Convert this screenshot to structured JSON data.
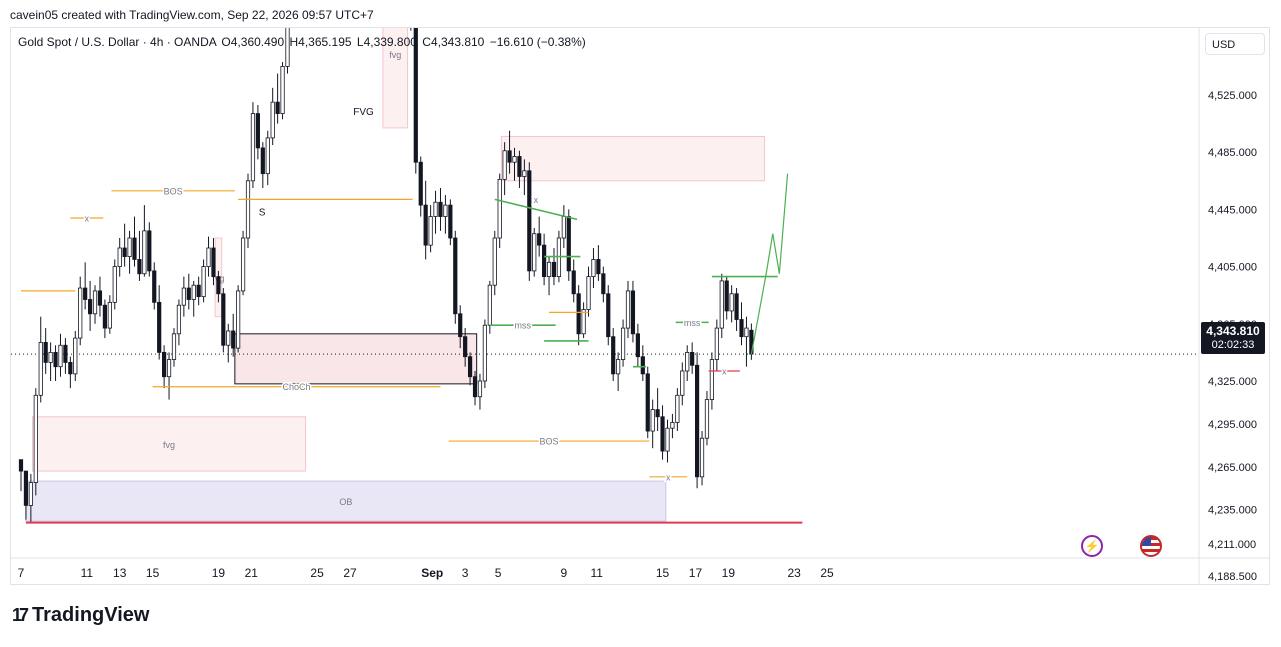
{
  "header": {
    "watermark": "cavein05 created with TradingView.com, Sep 22, 2026 09:57 UTC+7"
  },
  "legend": {
    "symbol": "Gold Spot / U.S. Dollar · 4h · OANDA",
    "open": "O4,360.490",
    "high": "H4,365.195",
    "low": "L4,339.800",
    "close": "C4,343.810",
    "change": "−16.610 (−0.38%)"
  },
  "price_axis": {
    "currency": "USD"
  },
  "last_price": {
    "price": "4,343.810",
    "countdown": "02:02:33"
  },
  "brand": {
    "name": "TradingView",
    "mark": "17"
  },
  "icons": {
    "alert": "lightning-icon",
    "flag": "us-flag-icon"
  },
  "colors": {
    "up": "#ffffff",
    "down": "#131722",
    "wick": "#131722",
    "orange": "#f5a623",
    "green": "#4caf50",
    "red": "#e53950",
    "zone_pink": "#fbe6e8",
    "zone_purple": "#e6e4f5"
  },
  "chart_data": {
    "type": "candlestick",
    "symbol": "XAUUSD",
    "timeframe": "4h",
    "y_ticks": [
      4525,
      4485,
      4445,
      4405,
      4365,
      4325,
      4295,
      4265,
      4235,
      4211,
      4188.5
    ],
    "y_tick_labels": [
      "4,525.000",
      "4,485.000",
      "4,445.000",
      "4,405.000",
      "4,365.000",
      "4,325.000",
      "4,295.000",
      "4,265.000",
      "4,235.000",
      "4,211.000",
      "4,188.500"
    ],
    "x_ticks": [
      "7",
      "11",
      "13",
      "15",
      "19",
      "21",
      "25",
      "27",
      "Sep",
      "3",
      "5",
      "9",
      "11",
      "15",
      "17",
      "19",
      "23",
      "25"
    ],
    "x_tick_day_index": [
      0,
      4,
      6,
      8,
      12,
      14,
      18,
      20,
      25,
      27,
      29,
      33,
      35,
      39,
      41,
      43,
      47,
      49
    ],
    "last_price": 4343.81,
    "candles": [
      [
        0,
        4270,
        4270,
        4248,
        4262
      ],
      [
        0.3,
        4262,
        4262,
        4228,
        4238
      ],
      [
        0.6,
        4238,
        4260,
        4226,
        4254
      ],
      [
        0.9,
        4254,
        4320,
        4245,
        4315
      ],
      [
        1.2,
        4315,
        4370,
        4310,
        4352
      ],
      [
        1.5,
        4352,
        4362,
        4330,
        4338
      ],
      [
        1.8,
        4338,
        4352,
        4325,
        4345
      ],
      [
        2.1,
        4345,
        4350,
        4325,
        4335
      ],
      [
        2.4,
        4335,
        4358,
        4328,
        4350
      ],
      [
        2.7,
        4350,
        4355,
        4330,
        4338
      ],
      [
        3.0,
        4338,
        4342,
        4320,
        4330
      ],
      [
        3.3,
        4330,
        4360,
        4325,
        4355
      ],
      [
        3.6,
        4355,
        4398,
        4350,
        4390
      ],
      [
        3.9,
        4390,
        4408,
        4375,
        4382
      ],
      [
        4.2,
        4382,
        4395,
        4360,
        4372
      ],
      [
        4.5,
        4372,
        4392,
        4365,
        4388
      ],
      [
        4.8,
        4388,
        4398,
        4370,
        4378
      ],
      [
        5.1,
        4378,
        4382,
        4355,
        4362
      ],
      [
        5.4,
        4362,
        4385,
        4358,
        4380
      ],
      [
        5.7,
        4380,
        4410,
        4375,
        4405
      ],
      [
        6.0,
        4405,
        4425,
        4398,
        4418
      ],
      [
        6.3,
        4418,
        4435,
        4405,
        4412
      ],
      [
        6.6,
        4412,
        4430,
        4400,
        4425
      ],
      [
        6.9,
        4425,
        4440,
        4405,
        4410
      ],
      [
        7.2,
        4410,
        4430,
        4395,
        4400
      ],
      [
        7.5,
        4400,
        4448,
        4398,
        4430
      ],
      [
        7.8,
        4430,
        4436,
        4398,
        4402
      ],
      [
        8.1,
        4402,
        4408,
        4375,
        4380
      ],
      [
        8.4,
        4380,
        4392,
        4340,
        4345
      ],
      [
        8.7,
        4345,
        4350,
        4320,
        4328
      ],
      [
        9.0,
        4328,
        4345,
        4312,
        4340
      ],
      [
        9.3,
        4340,
        4362,
        4335,
        4358
      ],
      [
        9.6,
        4358,
        4382,
        4350,
        4378
      ],
      [
        9.9,
        4378,
        4398,
        4370,
        4390
      ],
      [
        10.2,
        4390,
        4400,
        4375,
        4382
      ],
      [
        10.5,
        4382,
        4395,
        4370,
        4392
      ],
      [
        10.8,
        4392,
        4398,
        4378,
        4384
      ],
      [
        11.1,
        4384,
        4410,
        4380,
        4405
      ],
      [
        11.4,
        4405,
        4426,
        4398,
        4418
      ],
      [
        11.7,
        4418,
        4425,
        4392,
        4398
      ],
      [
        12.0,
        4398,
        4402,
        4380,
        4386
      ],
      [
        12.3,
        4386,
        4390,
        4345,
        4350
      ],
      [
        12.6,
        4350,
        4365,
        4338,
        4360
      ],
      [
        12.9,
        4360,
        4372,
        4342,
        4348
      ],
      [
        13.2,
        4348,
        4392,
        4345,
        4388
      ],
      [
        13.5,
        4388,
        4430,
        4385,
        4425
      ],
      [
        13.8,
        4425,
        4470,
        4418,
        4465
      ],
      [
        14.1,
        4465,
        4520,
        4460,
        4512
      ],
      [
        14.4,
        4512,
        4518,
        4480,
        4488
      ],
      [
        14.7,
        4488,
        4492,
        4460,
        4470
      ],
      [
        15.0,
        4470,
        4500,
        4462,
        4495
      ],
      [
        15.3,
        4495,
        4530,
        4490,
        4520
      ],
      [
        15.6,
        4520,
        4540,
        4505,
        4512
      ],
      [
        15.9,
        4512,
        4548,
        4508,
        4545
      ],
      [
        16.2,
        4545,
        4600,
        4540,
        4595
      ],
      [
        16.5,
        4595,
        4620,
        4580,
        4610
      ],
      [
        16.8,
        4610,
        4625,
        4598,
        4605
      ],
      [
        23.4,
        4605,
        4612,
        4590,
        4598
      ],
      [
        23.7,
        4598,
        4610,
        4570,
        4580
      ],
      [
        24.0,
        4580,
        4590,
        4470,
        4478
      ],
      [
        24.3,
        4478,
        4482,
        4440,
        4448
      ],
      [
        24.6,
        4448,
        4465,
        4410,
        4420
      ],
      [
        24.9,
        4420,
        4448,
        4415,
        4440
      ],
      [
        25.2,
        4440,
        4458,
        4428,
        4450
      ],
      [
        25.5,
        4450,
        4460,
        4430,
        4440
      ],
      [
        25.8,
        4440,
        4455,
        4428,
        4448
      ],
      [
        26.1,
        4448,
        4452,
        4420,
        4425
      ],
      [
        26.4,
        4425,
        4430,
        4365,
        4372
      ],
      [
        26.7,
        4372,
        4378,
        4348,
        4356
      ],
      [
        27.0,
        4356,
        4362,
        4335,
        4342
      ],
      [
        27.3,
        4342,
        4345,
        4322,
        4328
      ],
      [
        27.6,
        4328,
        4332,
        4308,
        4314
      ],
      [
        27.9,
        4314,
        4330,
        4305,
        4325
      ],
      [
        28.2,
        4325,
        4368,
        4320,
        4364
      ],
      [
        28.5,
        4364,
        4395,
        4358,
        4392
      ],
      [
        28.8,
        4392,
        4430,
        4385,
        4425
      ],
      [
        29.1,
        4425,
        4470,
        4418,
        4466
      ],
      [
        29.4,
        4466,
        4492,
        4455,
        4486
      ],
      [
        29.7,
        4486,
        4500,
        4470,
        4478
      ],
      [
        30.0,
        4478,
        4488,
        4465,
        4482
      ],
      [
        30.3,
        4482,
        4486,
        4460,
        4468
      ],
      [
        30.6,
        4468,
        4480,
        4455,
        4472
      ],
      [
        30.9,
        4472,
        4478,
        4395,
        4402
      ],
      [
        31.2,
        4402,
        4432,
        4398,
        4428
      ],
      [
        31.5,
        4428,
        4440,
        4412,
        4420
      ],
      [
        31.8,
        4420,
        4428,
        4392,
        4398
      ],
      [
        32.1,
        4398,
        4412,
        4385,
        4408
      ],
      [
        32.4,
        4408,
        4418,
        4392,
        4398
      ],
      [
        32.7,
        4398,
        4430,
        4394,
        4425
      ],
      [
        33.0,
        4425,
        4448,
        4418,
        4440
      ],
      [
        33.3,
        4440,
        4445,
        4395,
        4402
      ],
      [
        33.6,
        4402,
        4410,
        4380,
        4386
      ],
      [
        33.9,
        4386,
        4392,
        4350,
        4358
      ],
      [
        34.2,
        4358,
        4380,
        4355,
        4375
      ],
      [
        34.5,
        4375,
        4405,
        4370,
        4398
      ],
      [
        34.8,
        4398,
        4418,
        4390,
        4410
      ],
      [
        35.1,
        4410,
        4420,
        4395,
        4400
      ],
      [
        35.4,
        4400,
        4405,
        4380,
        4386
      ],
      [
        35.7,
        4386,
        4392,
        4350,
        4356
      ],
      [
        36.0,
        4356,
        4362,
        4325,
        4330
      ],
      [
        36.3,
        4330,
        4345,
        4318,
        4340
      ],
      [
        36.6,
        4340,
        4368,
        4335,
        4362
      ],
      [
        36.9,
        4362,
        4395,
        4355,
        4388
      ],
      [
        37.2,
        4388,
        4395,
        4352,
        4358
      ],
      [
        37.5,
        4358,
        4365,
        4335,
        4342
      ],
      [
        37.8,
        4342,
        4350,
        4325,
        4330
      ],
      [
        38.1,
        4330,
        4335,
        4285,
        4290
      ],
      [
        38.4,
        4290,
        4312,
        4278,
        4305
      ],
      [
        38.7,
        4305,
        4320,
        4290,
        4300
      ],
      [
        39.0,
        4300,
        4308,
        4270,
        4276
      ],
      [
        39.3,
        4276,
        4298,
        4268,
        4292
      ],
      [
        39.6,
        4292,
        4302,
        4285,
        4296
      ],
      [
        39.9,
        4296,
        4320,
        4290,
        4315
      ],
      [
        40.2,
        4315,
        4338,
        4308,
        4332
      ],
      [
        40.5,
        4332,
        4350,
        4325,
        4345
      ],
      [
        40.8,
        4345,
        4352,
        4330,
        4336
      ],
      [
        41.1,
        4336,
        4345,
        4250,
        4258
      ],
      [
        41.4,
        4258,
        4290,
        4252,
        4285
      ],
      [
        41.7,
        4285,
        4318,
        4280,
        4312
      ],
      [
        42.0,
        4312,
        4345,
        4305,
        4340
      ],
      [
        42.3,
        4340,
        4368,
        4332,
        4362
      ],
      [
        42.6,
        4362,
        4400,
        4355,
        4395
      ],
      [
        42.9,
        4395,
        4398,
        4368,
        4374
      ],
      [
        43.2,
        4374,
        4392,
        4366,
        4386
      ],
      [
        43.5,
        4386,
        4390,
        4360,
        4368
      ],
      [
        43.8,
        4368,
        4380,
        4350,
        4356
      ],
      [
        44.1,
        4356,
        4370,
        4335,
        4362
      ],
      [
        44.4,
        4360.49,
        4365.195,
        4339.8,
        4343.81
      ]
    ],
    "annotations": [
      {
        "type": "zone",
        "label": "fvg",
        "x1": 0.7,
        "x2": 17.3,
        "y1": 4300,
        "y2": 4262,
        "color": "pink"
      },
      {
        "type": "zone",
        "label": "OB",
        "x1": 0.3,
        "x2": 39.2,
        "y1": 4255,
        "y2": 4227,
        "color": "purple"
      },
      {
        "type": "zone",
        "label": "",
        "x1": 13.0,
        "x2": 27.7,
        "y1": 4358,
        "y2": 4323,
        "color": "pink_dark"
      },
      {
        "type": "zone",
        "label": "fvg",
        "x1": 11.8,
        "x2": 12.2,
        "y1": 4425,
        "y2": 4370,
        "color": "pink"
      },
      {
        "type": "zone",
        "label": "fvg",
        "x1": 22.0,
        "x2": 23.5,
        "y1": 4605,
        "y2": 4502,
        "color": "pink"
      },
      {
        "type": "zone",
        "label": "",
        "x1": 29.2,
        "x2": 45.2,
        "y1": 4496,
        "y2": 4465,
        "color": "pink"
      },
      {
        "type": "hline",
        "label": "BOS",
        "x1": 5.5,
        "x2": 13.0,
        "y": 4458,
        "color": "orange"
      },
      {
        "type": "hline",
        "label": "x",
        "x1": 3.0,
        "x2": 5.0,
        "y": 4439,
        "color": "orange"
      },
      {
        "type": "hline",
        "label": "ChoCh",
        "x1": 8.0,
        "x2": 25.5,
        "y": 4321,
        "color": "orange"
      },
      {
        "type": "hline",
        "label": "BOS",
        "x1": 26.0,
        "x2": 38.2,
        "y": 4283,
        "color": "orange"
      },
      {
        "type": "hline",
        "label": "S",
        "x1": 13.2,
        "x2": 23.8,
        "y": 4452,
        "color": "orange"
      },
      {
        "type": "hline",
        "label": "",
        "x1": 0,
        "x2": 3.3,
        "y": 4388,
        "color": "orange"
      },
      {
        "type": "hline",
        "label": "",
        "x1": 32.1,
        "x2": 34.5,
        "y": 4373,
        "color": "orange"
      },
      {
        "type": "hline",
        "label": "x",
        "x1": 38.2,
        "x2": 40.5,
        "y": 4258,
        "color": "orange"
      },
      {
        "type": "hline",
        "label": "mss",
        "x1": 28.5,
        "x2": 32.5,
        "y": 4364,
        "color": "green"
      },
      {
        "type": "hline",
        "label": "",
        "x1": 31.8,
        "x2": 34.0,
        "y": 4412,
        "color": "green"
      },
      {
        "type": "hline",
        "label": "",
        "x1": 31.8,
        "x2": 34.5,
        "y": 4353,
        "color": "green"
      },
      {
        "type": "hline",
        "label": "",
        "x1": 37.2,
        "x2": 38.0,
        "y": 4335,
        "color": "green"
      },
      {
        "type": "hline",
        "label": "",
        "x1": 42.0,
        "x2": 46.0,
        "y": 4398,
        "color": "green"
      },
      {
        "type": "hline",
        "label": "mss",
        "x1": 39.8,
        "x2": 41.8,
        "y": 4366,
        "color": "green"
      },
      {
        "type": "hline",
        "label": "x",
        "x1": 41.8,
        "x2": 43.7,
        "y": 4332,
        "color": "red"
      },
      {
        "type": "hline",
        "label": "",
        "x1": 0.3,
        "x2": 47.5,
        "y": 4226,
        "color": "red"
      },
      {
        "type": "segment",
        "label": "x",
        "x1": 28.8,
        "x2": 33.8,
        "y1": 4452,
        "y2": 4438,
        "color": "green"
      }
    ],
    "projection": [
      [
        44.4,
        4343.8
      ],
      [
        45.3,
        4400
      ],
      [
        45.7,
        4428
      ],
      [
        46.1,
        4400
      ],
      [
        46.6,
        4470
      ]
    ]
  }
}
